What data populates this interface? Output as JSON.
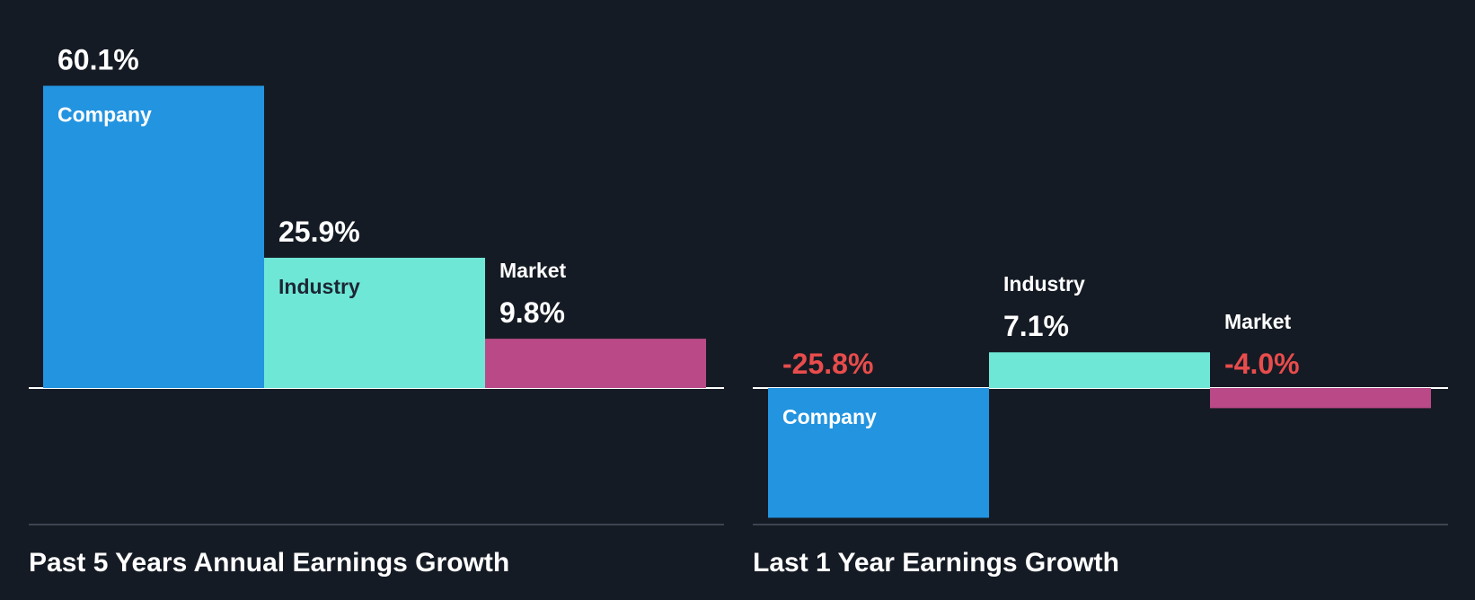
{
  "colors": {
    "background": "#151b24",
    "company": "#2394e0",
    "industry": "#6fe7d6",
    "market": "#ba4a87",
    "positive_text": "#ffffff",
    "negative_text": "#e84c4c",
    "dark_label": "#1c2634",
    "light_label": "#ffffff"
  },
  "chart_data": [
    {
      "type": "bar",
      "title": "Past 5 Years Annual Earnings Growth",
      "categories": [
        "Company",
        "Industry",
        "Market"
      ],
      "values": [
        60.1,
        25.9,
        9.8
      ],
      "value_labels": [
        "60.1%",
        "25.9%",
        "9.8%"
      ],
      "ylim": [
        -26.4,
        62.9
      ]
    },
    {
      "type": "bar",
      "title": "Last 1 Year Earnings Growth",
      "categories": [
        "Company",
        "Industry",
        "Market"
      ],
      "values": [
        -25.8,
        7.1,
        -4.0
      ],
      "value_labels": [
        "-25.8%",
        "7.1%",
        "-4.0%"
      ],
      "ylim": [
        -26.4,
        62.9
      ]
    }
  ]
}
